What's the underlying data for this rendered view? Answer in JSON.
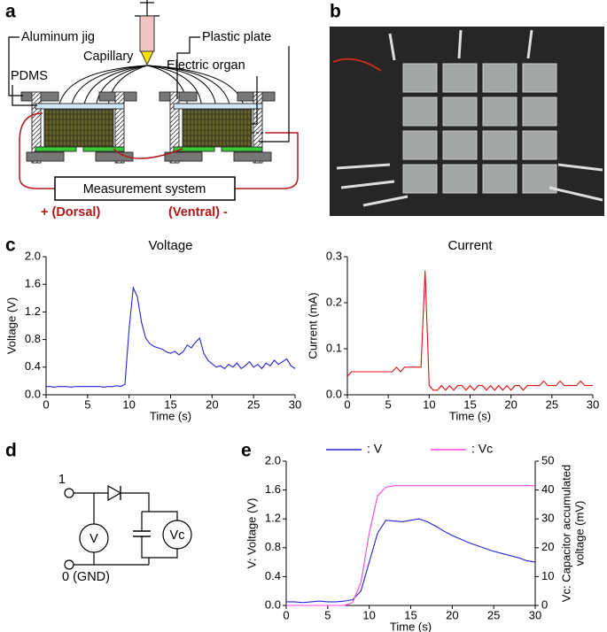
{
  "panel_labels": [
    "a",
    "b",
    "c",
    "d",
    "e"
  ],
  "diagram": {
    "aluminum_jig": "Aluminum jig",
    "capillary": "Capillary",
    "plastic_plate": "Plastic plate",
    "pdms": "PDMS",
    "electric_organ": "Electric organ",
    "measurement_system": "Measurement system",
    "dorsal": "+ (Dorsal)",
    "ventral": "(Ventral) -"
  },
  "circuit": {
    "terminal_1": "1",
    "terminal_0": "0 (GND)",
    "voltmeter": "V",
    "capacitor_voltmeter": "Vc"
  },
  "chart_data": [
    {
      "type": "line",
      "title": "Voltage",
      "xlabel": "Time (s)",
      "ylabel": "Voltage (V)",
      "xlim": [
        0,
        30
      ],
      "xticks": [
        0,
        5,
        10,
        15,
        20,
        25,
        30
      ],
      "ylim": [
        0,
        2.0
      ],
      "yticks": [
        {
          "value": 0,
          "label": "0.0"
        },
        0.4,
        0.8,
        1.2,
        1.6,
        {
          "value": 2.0,
          "label": "2.0"
        }
      ],
      "x": [
        0,
        0.5,
        1,
        1.5,
        2,
        2.5,
        3,
        3.5,
        4,
        4.5,
        5,
        5.5,
        6,
        6.5,
        7,
        7.5,
        8,
        8.5,
        9,
        9.5,
        10,
        10.5,
        11,
        11.5,
        12,
        12.5,
        13,
        13.5,
        14,
        14.5,
        15,
        15.5,
        16,
        16.5,
        17,
        17.5,
        18,
        18.5,
        19,
        19.5,
        20,
        20.5,
        21,
        21.5,
        22,
        22.5,
        23,
        23.5,
        24,
        24.5,
        25,
        25.5,
        26,
        26.5,
        27,
        27.5,
        28,
        28.5,
        29,
        29.5,
        30
      ],
      "series": [
        {
          "color": "#2323d4",
          "values": [
            0.12,
            0.12,
            0.11,
            0.12,
            0.12,
            0.12,
            0.11,
            0.12,
            0.12,
            0.12,
            0.12,
            0.12,
            0.12,
            0.12,
            0.11,
            0.12,
            0.12,
            0.13,
            0.12,
            0.15,
            0.95,
            1.55,
            1.42,
            1.05,
            0.82,
            0.74,
            0.7,
            0.68,
            0.66,
            0.62,
            0.6,
            0.63,
            0.58,
            0.62,
            0.72,
            0.68,
            0.76,
            0.82,
            0.6,
            0.5,
            0.45,
            0.4,
            0.42,
            0.38,
            0.44,
            0.4,
            0.46,
            0.38,
            0.42,
            0.48,
            0.4,
            0.44,
            0.38,
            0.46,
            0.42,
            0.5,
            0.44,
            0.48,
            0.52,
            0.42,
            0.38
          ]
        }
      ]
    },
    {
      "type": "line",
      "title": "Current",
      "xlabel": "Time (s)",
      "ylabel": "Current (mA)",
      "xlim": [
        0,
        30
      ],
      "xticks": [
        0,
        5,
        10,
        15,
        20,
        25,
        30
      ],
      "ylim": [
        0,
        0.3
      ],
      "yticks": [
        {
          "value": 0,
          "label": "0.0"
        },
        0.1,
        0.2,
        0.3
      ],
      "x": [
        0,
        0.5,
        1,
        1.5,
        2,
        2.5,
        3,
        3.5,
        4,
        4.5,
        5,
        5.5,
        6,
        6.5,
        7,
        7.5,
        8,
        8.5,
        9,
        9.5,
        10,
        10.5,
        11,
        11.5,
        12,
        12.5,
        13,
        13.5,
        14,
        14.5,
        15,
        15.5,
        16,
        16.5,
        17,
        17.5,
        18,
        18.5,
        19,
        19.5,
        20,
        20.5,
        21,
        21.5,
        22,
        22.5,
        23,
        23.5,
        24,
        24.5,
        25,
        25.5,
        26,
        26.5,
        27,
        27.5,
        28,
        28.5,
        29,
        29.5,
        30
      ],
      "series": [
        {
          "color": "#e01010",
          "values": [
            0.04,
            0.05,
            0.05,
            0.05,
            0.05,
            0.05,
            0.05,
            0.05,
            0.05,
            0.05,
            0.05,
            0.05,
            0.06,
            0.05,
            0.06,
            0.06,
            0.06,
            0.06,
            0.06,
            0.27,
            0.02,
            0.01,
            0.01,
            0.02,
            0.01,
            0.02,
            0.01,
            0.02,
            0.02,
            0.01,
            0.02,
            0.01,
            0.02,
            0.02,
            0.01,
            0.02,
            0.01,
            0.02,
            0.01,
            0.02,
            0.01,
            0.02,
            0.02,
            0.01,
            0.02,
            0.02,
            0.02,
            0.02,
            0.03,
            0.02,
            0.02,
            0.02,
            0.03,
            0.02,
            0.02,
            0.02,
            0.02,
            0.03,
            0.02,
            0.02,
            0.02
          ]
        }
      ]
    },
    {
      "type": "line",
      "xlabel": "Time (s)",
      "ylabel": "V: Voltage (V)",
      "y2label": [
        "Vc: Capacitor accumulated",
        "voltage (mV)"
      ],
      "xlim": [
        0,
        30
      ],
      "xticks": [
        0,
        5,
        10,
        15,
        20,
        25,
        30
      ],
      "ylim": [
        0,
        2.0
      ],
      "yticks": [
        {
          "value": 0,
          "label": "0.0"
        },
        0.4,
        0.8,
        1.2,
        1.6,
        {
          "value": 2.0,
          "label": "2.0"
        }
      ],
      "y2lim": [
        0,
        50
      ],
      "y2ticks": [
        0,
        10,
        20,
        30,
        40,
        50
      ],
      "x": [
        0,
        1,
        2,
        3,
        4,
        5,
        6,
        7,
        8,
        9,
        10,
        11,
        12,
        13,
        14,
        15,
        16,
        17,
        18,
        19,
        20,
        21,
        22,
        23,
        24,
        25,
        26,
        27,
        28,
        29,
        30
      ],
      "series": [
        {
          "name": ": V",
          "color": "#2323d4",
          "values": [
            0.05,
            0.05,
            0.04,
            0.05,
            0.06,
            0.05,
            0.05,
            0.06,
            0.08,
            0.2,
            0.6,
            1.0,
            1.18,
            1.17,
            1.16,
            1.18,
            1.2,
            1.16,
            1.1,
            1.03,
            0.97,
            0.92,
            0.87,
            0.83,
            0.79,
            0.75,
            0.72,
            0.69,
            0.66,
            0.62,
            0.6
          ]
        },
        {
          "name": ": Vc",
          "color": "#ff44dd",
          "axis": "y2",
          "values": [
            0,
            0,
            0,
            0,
            0,
            0,
            0,
            0,
            1,
            8,
            25,
            38,
            41,
            41.5,
            41.5,
            41.5,
            41.5,
            41.5,
            41.5,
            41.5,
            41.5,
            41.5,
            41.5,
            41.5,
            41.5,
            41.5,
            41.5,
            41.5,
            41.5,
            41.5,
            41.5
          ]
        }
      ]
    }
  ]
}
